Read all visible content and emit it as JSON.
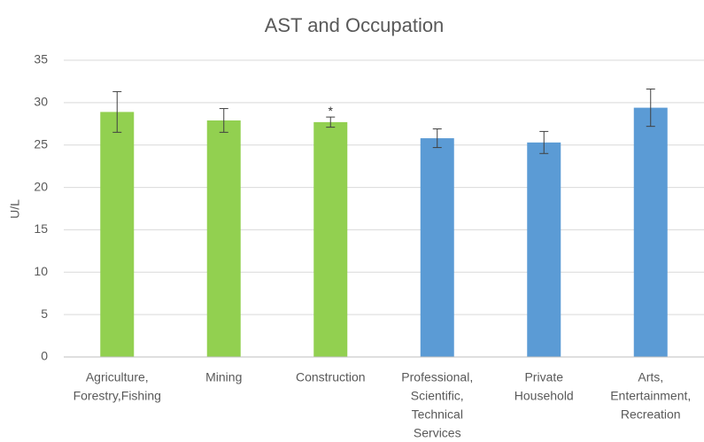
{
  "chart_data": {
    "type": "bar",
    "title": "AST and Occupation",
    "ylabel": "U/L",
    "categories": [
      [
        "Agriculture,",
        "Forestry,Fishing"
      ],
      [
        "Mining"
      ],
      [
        "Construction"
      ],
      [
        "Professional,",
        "Scientific,",
        "Technical",
        "Services"
      ],
      [
        "Private",
        "Household"
      ],
      [
        "Arts,",
        "Entertainment,",
        "Recreation"
      ]
    ],
    "values": [
      28.9,
      27.9,
      27.7,
      25.8,
      25.3,
      29.4
    ],
    "errors": [
      2.4,
      1.4,
      0.6,
      1.1,
      1.3,
      2.2
    ],
    "colors": [
      "#92d050",
      "#92d050",
      "#92d050",
      "#5b9bd5",
      "#5b9bd5",
      "#5b9bd5"
    ],
    "markers": [
      null,
      null,
      "*",
      null,
      null,
      null
    ],
    "ylim": [
      0,
      35
    ],
    "yticks": [
      0,
      5,
      10,
      15,
      20,
      25,
      30,
      35
    ],
    "grid": true
  }
}
